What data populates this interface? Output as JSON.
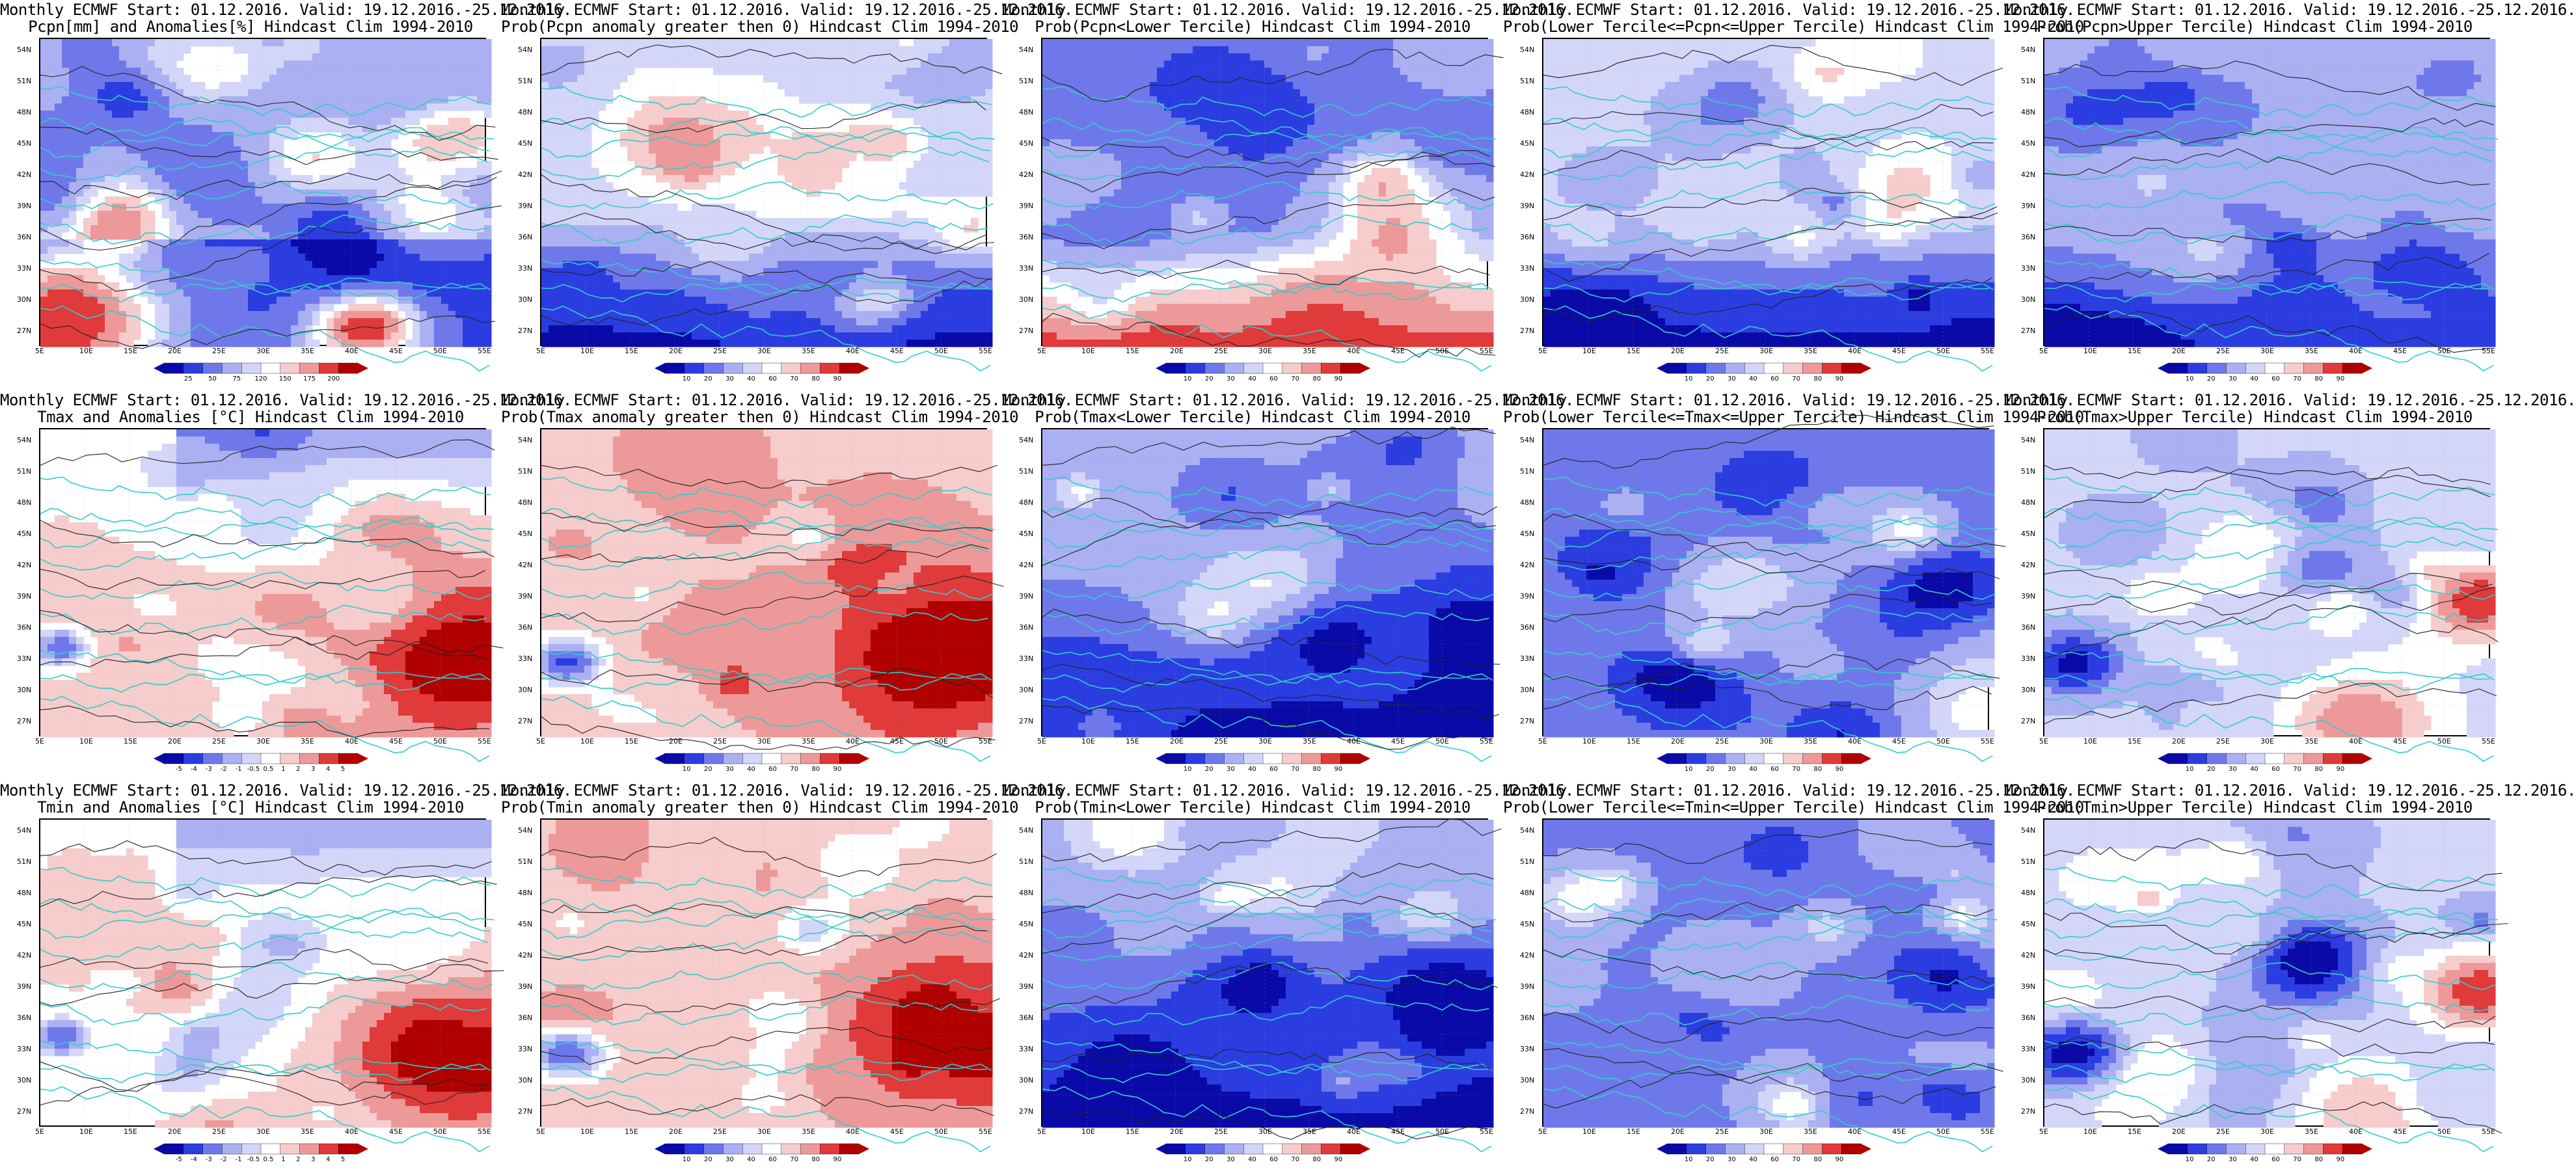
{
  "panels": [
    {
      "title1": "Monthly ECMWF Start: 01.12.2016. Valid: 19.12.2016.-25.12.2016.",
      "title2": "Pcpn[mm] and Anomalies[%] Hindcast Clim 1994-2010",
      "scheme": "anom_pcpn",
      "ticks": [
        "25",
        "50",
        "75",
        "120",
        "150",
        "175",
        "200"
      ]
    },
    {
      "title1": "Monthly ECMWF Start: 01.12.2016. Valid: 19.12.2016.-25.12.2016.",
      "title2": "Prob(Pcpn anomaly greater then 0) Hindcast Clim 1994-2010",
      "scheme": "prob_dry",
      "ticks": [
        "10",
        "20",
        "30",
        "40",
        "60",
        "70",
        "80",
        "90"
      ]
    },
    {
      "title1": "Monthly ECMWF Start: 01.12.2016. Valid: 19.12.2016.-25.12.2016.",
      "title2": "Prob(Pcpn<Lower Tercile) Hindcast Clim 1994-2010",
      "scheme": "prob_redsouth",
      "ticks": [
        "10",
        "20",
        "30",
        "40",
        "60",
        "70",
        "80",
        "90"
      ]
    },
    {
      "title1": "Monthly ECMWF Start: 01.12.2016. Valid: 19.12.2016.-25.12.2016.",
      "title2": "Prob(Lower Tercile<=Pcpn<=Upper Tercile) Hindcast Clim 1994-2010",
      "scheme": "prob_dry",
      "ticks": [
        "10",
        "20",
        "30",
        "40",
        "60",
        "70",
        "80",
        "90"
      ]
    },
    {
      "title1": "Monthly ECMWF Start: 01.12.2016. Valid: 19.12.2016.-25.12.2016.",
      "title2": "Prob(Pcpn>Upper Tercile) Hindcast Clim 1994-2010",
      "scheme": "prob_blue",
      "ticks": [
        "10",
        "20",
        "30",
        "40",
        "60",
        "70",
        "80",
        "90"
      ]
    },
    {
      "title1": "Monthly ECMWF Start: 01.12.2016. Valid: 19.12.2016.-25.12.2016.",
      "title2": "Tmax and Anomalies [°C] Hindcast Clim 1994-2010",
      "scheme": "anom_warmse",
      "ticks": [
        "-5",
        "-4",
        "-3",
        "-2",
        "-1",
        "-0.5",
        "0.5",
        "1",
        "2",
        "3",
        "4",
        "5"
      ]
    },
    {
      "title1": "Monthly ECMWF Start: 01.12.2016. Valid: 19.12.2016.-25.12.2016.",
      "title2": "Prob(Tmax anomaly greater then 0) Hindcast Clim 1994-2010",
      "scheme": "prob_warm",
      "ticks": [
        "10",
        "20",
        "30",
        "40",
        "60",
        "70",
        "80",
        "90"
      ]
    },
    {
      "title1": "Monthly ECMWF Start: 01.12.2016. Valid: 19.12.2016.-25.12.2016.",
      "title2": "Prob(Tmax<Lower Tercile) Hindcast Clim 1994-2010",
      "scheme": "prob_coldsouth",
      "ticks": [
        "10",
        "20",
        "30",
        "40",
        "60",
        "70",
        "80",
        "90"
      ]
    },
    {
      "title1": "Monthly ECMWF Start: 01.12.2016. Valid: 19.12.2016.-25.12.2016.",
      "title2": "Prob(Lower Tercile<=Tmax<=Upper Tercile) Hindcast Clim 1994-2010",
      "scheme": "prob_mixblue",
      "ticks": [
        "10",
        "20",
        "30",
        "40",
        "60",
        "70",
        "80",
        "90"
      ]
    },
    {
      "title1": "Monthly ECMWF Start: 01.12.2016. Valid: 19.12.2016.-25.12.2016.",
      "title2": "Prob(Tmax>Upper Tercile) Hindcast Clim 1994-2010",
      "scheme": "prob_upper",
      "ticks": [
        "10",
        "20",
        "30",
        "40",
        "60",
        "70",
        "80",
        "90"
      ]
    },
    {
      "title1": "Monthly ECMWF Start: 01.12.2016. Valid: 19.12.2016.-25.12.2016.",
      "title2": "Tmin and Anomalies [°C] Hindcast Clim 1994-2010",
      "scheme": "anom_warmse",
      "ticks": [
        "-5",
        "-4",
        "-3",
        "-2",
        "-1",
        "-0.5",
        "0.5",
        "1",
        "2",
        "3",
        "4",
        "5"
      ]
    },
    {
      "title1": "Monthly ECMWF Start: 01.12.2016. Valid: 19.12.2016.-25.12.2016.",
      "title2": "Prob(Tmin anomaly greater then 0) Hindcast Clim 1994-2010",
      "scheme": "prob_warm",
      "ticks": [
        "10",
        "20",
        "30",
        "40",
        "60",
        "70",
        "80",
        "90"
      ]
    },
    {
      "title1": "Monthly ECMWF Start: 01.12.2016. Valid: 19.12.2016.-25.12.2016.",
      "title2": "Prob(Tmin<Lower Tercile) Hindcast Clim 1994-2010",
      "scheme": "prob_coldsouth",
      "ticks": [
        "10",
        "20",
        "30",
        "40",
        "60",
        "70",
        "80",
        "90"
      ]
    },
    {
      "title1": "Monthly ECMWF Start: 01.12.2016. Valid: 19.12.2016.-25.12.2016.",
      "title2": "Prob(Lower Tercile<=Tmin<=Upper Tercile) Hindcast Clim 1994-2010",
      "scheme": "prob_mixblue",
      "ticks": [
        "10",
        "20",
        "30",
        "40",
        "60",
        "70",
        "80",
        "90"
      ]
    },
    {
      "title1": "Monthly ECMWF Start: 01.12.2016. Valid: 19.12.2016.-25.12.2016.",
      "title2": "Prob(Tmin>Upper Tercile) Hindcast Clim 1994-2010",
      "scheme": "prob_upper",
      "ticks": [
        "10",
        "20",
        "30",
        "40",
        "60",
        "70",
        "80",
        "90"
      ]
    }
  ],
  "lat_labels": [
    "54N",
    "51N",
    "48N",
    "45N",
    "42N",
    "39N",
    "36N",
    "33N",
    "30N",
    "27N"
  ],
  "lon_labels": [
    "5E",
    "10E",
    "15E",
    "20E",
    "25E",
    "30E",
    "35E",
    "40E",
    "45E",
    "50E",
    "55E"
  ],
  "colors": {
    "dark_blue": "#0a0aa8",
    "blue": "#2b3de0",
    "mid_blue": "#6f78ea",
    "light_blue": "#aab0f2",
    "pale_blue": "#d3d6f8",
    "white": "#ffffff",
    "pale_red": "#f6cccc",
    "light_red": "#ee9999",
    "red": "#e03a3a",
    "dark_red": "#b00000",
    "coast": "#33cccc",
    "contour": "#222222"
  }
}
